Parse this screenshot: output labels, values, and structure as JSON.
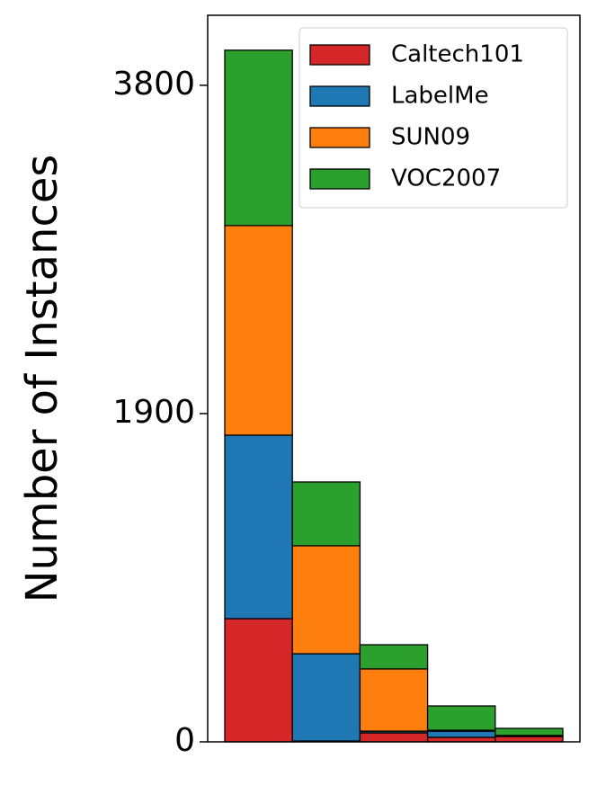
{
  "chart_data": {
    "type": "bar",
    "stacked": true,
    "ylabel": "Number of Instances",
    "categories": [
      null,
      null,
      null,
      null,
      null
    ],
    "series": [
      {
        "name": "Caltech101",
        "color": "#d62728",
        "values": [
          713,
          5,
          52,
          26,
          31
        ]
      },
      {
        "name": "LabelMe",
        "color": "#1f77b4",
        "values": [
          1062,
          505,
          10,
          36,
          3
        ]
      },
      {
        "name": "SUN09",
        "color": "#ff7f0e",
        "values": [
          1213,
          625,
          360,
          5,
          3
        ]
      },
      {
        "name": "VOC2007",
        "color": "#2ca02c",
        "values": [
          1015,
          369,
          140,
          141,
          41
        ]
      }
    ],
    "ylim": [
      0,
      4205
    ],
    "yticks": [
      0,
      1900,
      3800
    ],
    "grid": false,
    "legend": "upper right"
  }
}
